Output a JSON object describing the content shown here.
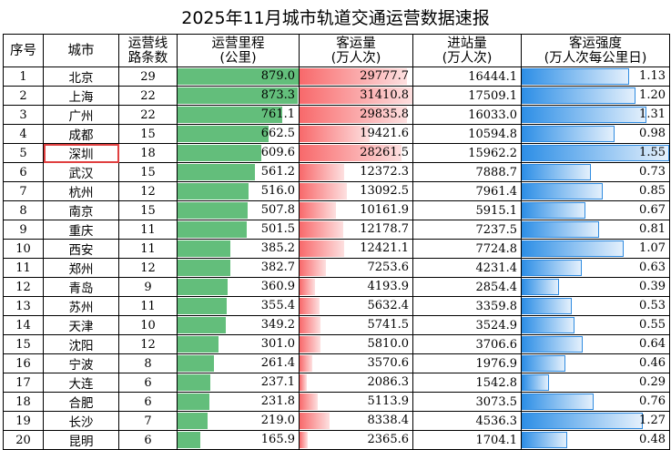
{
  "title": "2025年11月城市轨道交通运营数据速报",
  "headers": {
    "rank": "序号",
    "city": "城市",
    "lines": [
      "运营线",
      "路条数"
    ],
    "mileage": [
      "运营里程",
      "(公里)"
    ],
    "ridership": [
      "客运量",
      "(万人次)"
    ],
    "entries": [
      "进站量",
      "(万人次)"
    ],
    "intensity": [
      "客运强度",
      "(万人次每公里日)"
    ]
  },
  "highlight_city": "深圳",
  "colors": {
    "mileage_bar": "#63be7b",
    "ridership_bar": "#f8696b",
    "intensity_bar": "#2e8fe6",
    "highlight": "#e04040"
  },
  "rows": [
    {
      "rank": "1",
      "city": "北京",
      "lines": "29",
      "mileage": "879.0",
      "ridership": "29777.7",
      "entries": "16444.1",
      "intensity": "1.13"
    },
    {
      "rank": "2",
      "city": "上海",
      "lines": "22",
      "mileage": "873.3",
      "ridership": "31410.8",
      "entries": "17509.1",
      "intensity": "1.20"
    },
    {
      "rank": "3",
      "city": "广州",
      "lines": "22",
      "mileage": "761.1",
      "ridership": "29835.8",
      "entries": "16033.0",
      "intensity": "1.31"
    },
    {
      "rank": "4",
      "city": "成都",
      "lines": "15",
      "mileage": "662.5",
      "ridership": "19421.6",
      "entries": "10594.8",
      "intensity": "0.98"
    },
    {
      "rank": "5",
      "city": "深圳",
      "lines": "18",
      "mileage": "609.6",
      "ridership": "28261.5",
      "entries": "15962.2",
      "intensity": "1.55"
    },
    {
      "rank": "6",
      "city": "武汉",
      "lines": "15",
      "mileage": "561.2",
      "ridership": "12372.3",
      "entries": "7888.7",
      "intensity": "0.73"
    },
    {
      "rank": "7",
      "city": "杭州",
      "lines": "12",
      "mileage": "516.0",
      "ridership": "13092.5",
      "entries": "7961.4",
      "intensity": "0.85"
    },
    {
      "rank": "8",
      "city": "南京",
      "lines": "15",
      "mileage": "507.8",
      "ridership": "10161.9",
      "entries": "5915.1",
      "intensity": "0.67"
    },
    {
      "rank": "9",
      "city": "重庆",
      "lines": "11",
      "mileage": "501.5",
      "ridership": "12178.7",
      "entries": "7237.5",
      "intensity": "0.81"
    },
    {
      "rank": "10",
      "city": "西安",
      "lines": "11",
      "mileage": "385.2",
      "ridership": "12421.1",
      "entries": "7724.8",
      "intensity": "1.07"
    },
    {
      "rank": "11",
      "city": "郑州",
      "lines": "12",
      "mileage": "382.7",
      "ridership": "7253.6",
      "entries": "4231.4",
      "intensity": "0.63"
    },
    {
      "rank": "12",
      "city": "青岛",
      "lines": "9",
      "mileage": "360.9",
      "ridership": "4193.9",
      "entries": "2854.4",
      "intensity": "0.39"
    },
    {
      "rank": "13",
      "city": "苏州",
      "lines": "11",
      "mileage": "355.4",
      "ridership": "5632.4",
      "entries": "3359.8",
      "intensity": "0.53"
    },
    {
      "rank": "14",
      "city": "天津",
      "lines": "10",
      "mileage": "349.2",
      "ridership": "5741.5",
      "entries": "3524.9",
      "intensity": "0.55"
    },
    {
      "rank": "15",
      "city": "沈阳",
      "lines": "12",
      "mileage": "301.0",
      "ridership": "5810.0",
      "entries": "3706.6",
      "intensity": "0.64"
    },
    {
      "rank": "16",
      "city": "宁波",
      "lines": "8",
      "mileage": "261.4",
      "ridership": "3570.6",
      "entries": "1976.9",
      "intensity": "0.46"
    },
    {
      "rank": "17",
      "city": "大连",
      "lines": "6",
      "mileage": "237.1",
      "ridership": "2086.3",
      "entries": "1542.8",
      "intensity": "0.29"
    },
    {
      "rank": "18",
      "city": "合肥",
      "lines": "6",
      "mileage": "231.8",
      "ridership": "5113.9",
      "entries": "3073.5",
      "intensity": "0.76"
    },
    {
      "rank": "19",
      "city": "长沙",
      "lines": "7",
      "mileage": "219.0",
      "ridership": "8338.4",
      "entries": "4536.3",
      "intensity": "1.27"
    },
    {
      "rank": "20",
      "city": "昆明",
      "lines": "6",
      "mileage": "165.9",
      "ridership": "2365.6",
      "entries": "1704.1",
      "intensity": "0.48"
    }
  ]
}
